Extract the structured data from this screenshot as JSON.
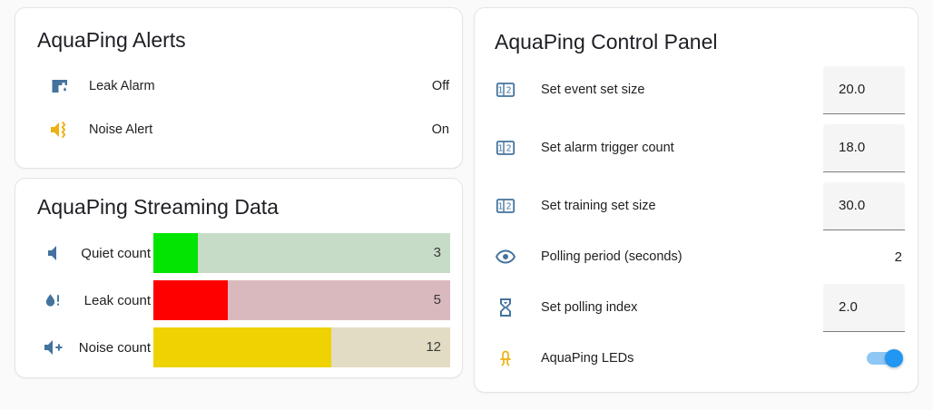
{
  "app": {
    "background_color": "#fafafa",
    "card_background_color": "#ffffff",
    "accent_color": "#2196f3",
    "icon_blue": "#44739e",
    "icon_amber": "#edb112"
  },
  "alerts_card": {
    "title": "AquaPing Alerts",
    "rows": [
      {
        "icon": "pipe-leak-icon",
        "icon_color": "#44739e",
        "label": "Leak Alarm",
        "state": "Off"
      },
      {
        "icon": "volume-vibrate-icon",
        "icon_color": "#edb112",
        "label": "Noise Alert",
        "state": "On"
      }
    ]
  },
  "streaming_card": {
    "title": "AquaPing Streaming Data",
    "chart_data": {
      "type": "bar",
      "orientation": "horizontal",
      "title": "AquaPing Streaming Data",
      "categories": [
        "Quiet count",
        "Leak count",
        "Noise count"
      ],
      "values": [
        3,
        5,
        12
      ],
      "max": 20,
      "bar_colors": [
        "#02e502",
        "#fe0000",
        "#eed202"
      ],
      "track_colors": [
        "#c6dcc6",
        "#dab9be",
        "#e1dcc3"
      ],
      "icons": [
        "volume-low-icon",
        "water-alert-icon",
        "volume-plus-icon"
      ],
      "icon_color": "#44739e",
      "value_labels_inside": true
    }
  },
  "control_card": {
    "title": "AquaPing Control Panel",
    "rows": [
      {
        "icon": "counter-icon",
        "icon_color": "#44739e",
        "label": "Set event set size",
        "control": "number-input",
        "value": "20.0"
      },
      {
        "icon": "counter-icon",
        "icon_color": "#44739e",
        "label": "Set alarm trigger count",
        "control": "number-input",
        "value": "18.0"
      },
      {
        "icon": "counter-icon",
        "icon_color": "#44739e",
        "label": "Set training set size",
        "control": "number-input",
        "value": "30.0"
      },
      {
        "icon": "eye-icon",
        "icon_color": "#44739e",
        "label": "Polling period (seconds)",
        "control": "text",
        "value": "2"
      },
      {
        "icon": "timer-sand-icon",
        "icon_color": "#44739e",
        "label": "Set polling index",
        "control": "number-input",
        "value": "2.0"
      },
      {
        "icon": "led-icon",
        "icon_color": "#edb112",
        "label": "AquaPing LEDs",
        "control": "toggle",
        "value": "on"
      }
    ],
    "toggle": {
      "state": "on",
      "track_color": "#8ec7f4",
      "thumb_color": "#2196f3"
    }
  }
}
